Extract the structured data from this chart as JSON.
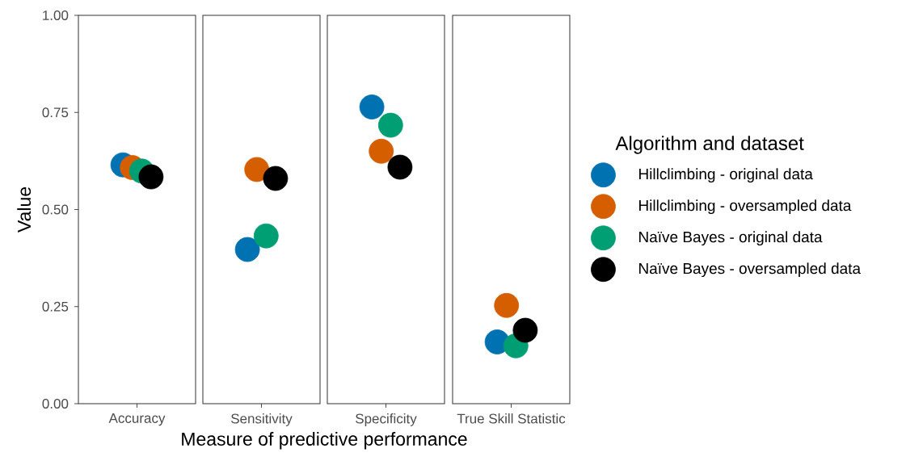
{
  "chart_data": [
    {
      "type": "scatter",
      "ylabel": "Value",
      "xlabel": "Measure of predictive performance",
      "categories": [
        "Accuracy"
      ],
      "ylim": [
        0,
        1
      ],
      "yticks": [
        {
          "value": 0,
          "label": "0.00"
        },
        {
          "value": 0.25,
          "label": "0.25"
        },
        {
          "value": 0.5,
          "label": "0.50"
        },
        {
          "value": 0.75,
          "label": "0.75"
        },
        {
          "value": 1,
          "label": "1.00"
        }
      ],
      "grid": false,
      "series": [
        {
          "color": "#0072b2",
          "values": [
            0.615
          ]
        },
        {
          "color": "#d55e00",
          "values": [
            0.608
          ]
        },
        {
          "color": "#009e73",
          "values": [
            0.599
          ]
        },
        {
          "color": "#000000",
          "values": [
            0.584
          ]
        }
      ]
    },
    {
      "type": "scatter",
      "categories": [
        "Sensitivity"
      ],
      "ylim": [
        0,
        1
      ],
      "tick_labels": "x",
      "grid": false,
      "series": [
        {
          "color": "#0072b2",
          "values": [
            0.397
          ]
        },
        {
          "color": "#d55e00",
          "values": [
            0.603
          ]
        },
        {
          "color": "#009e73",
          "values": [
            0.432
          ]
        },
        {
          "color": "#000000",
          "values": [
            0.58
          ]
        }
      ]
    },
    {
      "type": "scatter",
      "categories": [
        "Specificity"
      ],
      "ylim": [
        0,
        1
      ],
      "tick_labels": "x",
      "grid": false,
      "series": [
        {
          "color": "#0072b2",
          "values": [
            0.764
          ]
        },
        {
          "color": "#d55e00",
          "values": [
            0.65
          ]
        },
        {
          "color": "#009e73",
          "values": [
            0.717
          ]
        },
        {
          "color": "#000000",
          "values": [
            0.609
          ]
        }
      ]
    },
    {
      "type": "scatter",
      "categories": [
        "True Skill Statistic"
      ],
      "ylim": [
        0,
        1
      ],
      "tick_labels": "x",
      "grid": false,
      "legend": "right",
      "legend_title": "Algorithm and dataset",
      "series": [
        {
          "name": "Hillclimbing - original data",
          "color": "#0072b2",
          "values": [
            0.159
          ]
        },
        {
          "name": "Hillclimbing - oversampled data",
          "color": "#d55e00",
          "values": [
            0.253
          ]
        },
        {
          "name": "Naïve Bayes - original data",
          "color": "#009e73",
          "values": [
            0.149
          ]
        },
        {
          "name": "Naïve Bayes - oversampled data",
          "color": "#000000",
          "values": [
            0.189
          ]
        }
      ]
    }
  ]
}
